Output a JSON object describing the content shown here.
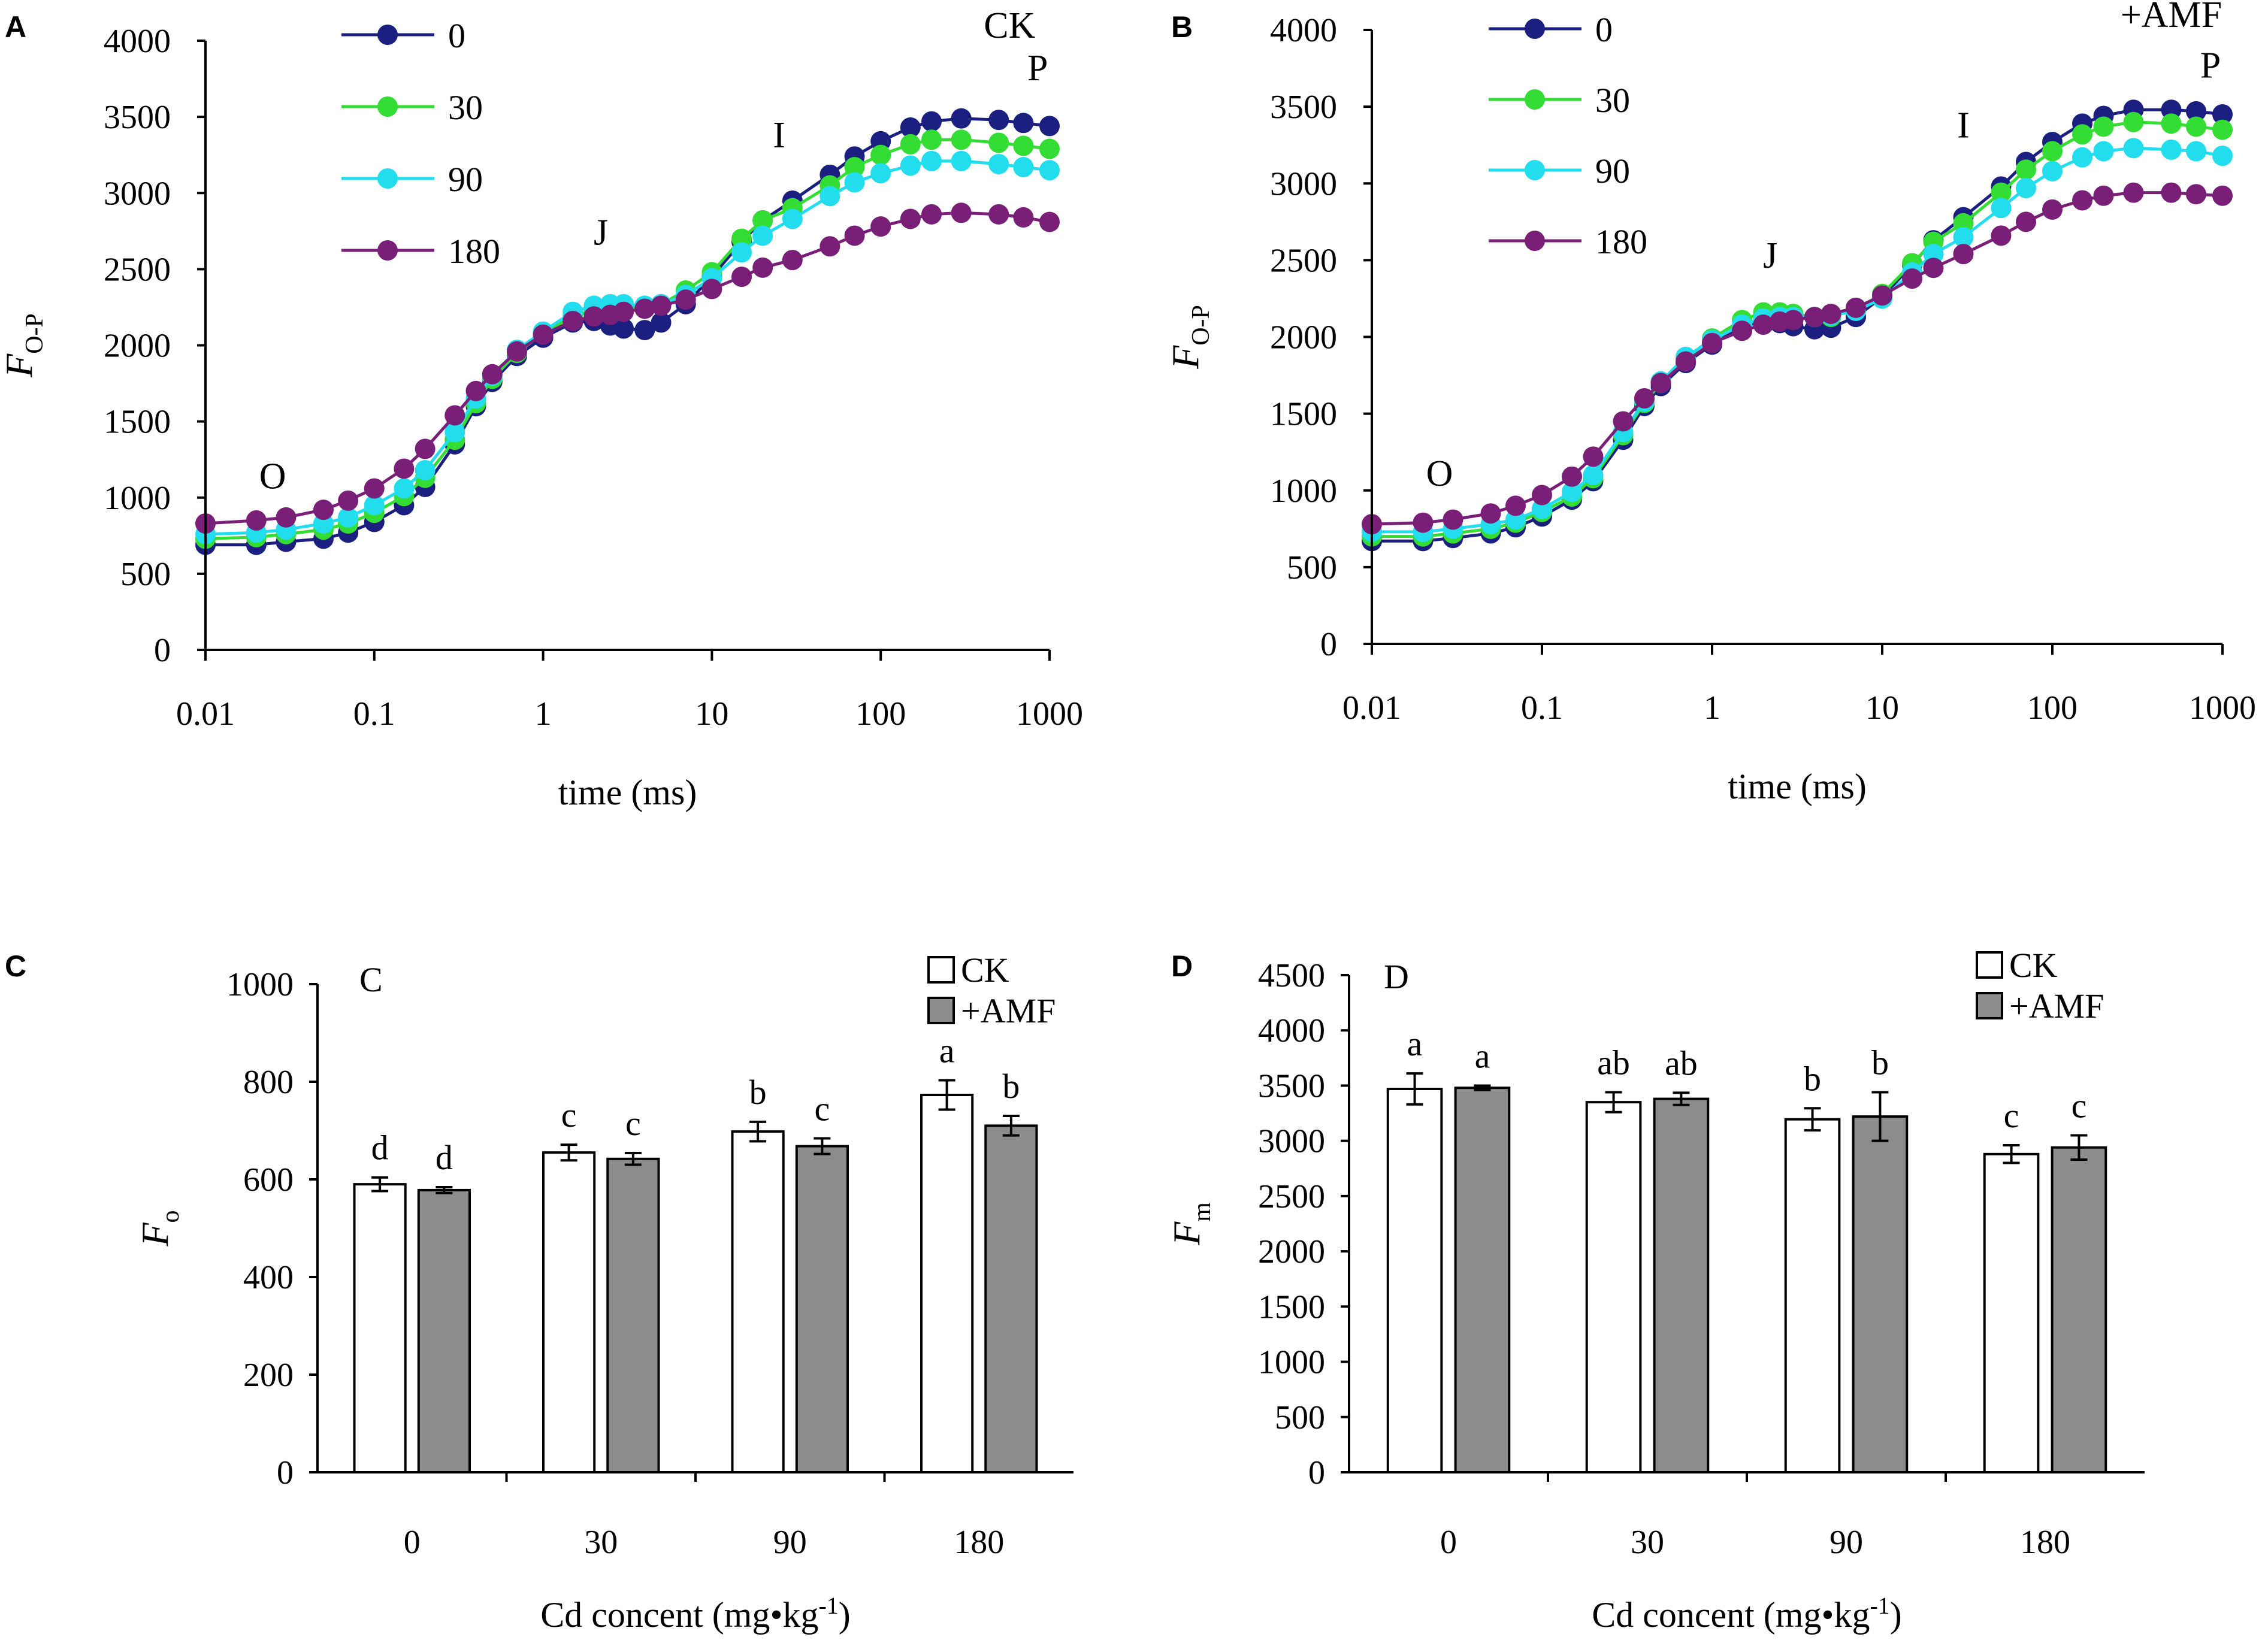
{
  "chart_data": [
    {
      "panel": "A",
      "type": "line",
      "inset_label": "CK",
      "xlabel": "time (ms)",
      "ylabel_main": "F",
      "ylabel_sub": "O-P",
      "xscale": "log",
      "xlim": [
        0.01,
        1000
      ],
      "ylim": [
        0,
        4000
      ],
      "xticks": [
        "0.01",
        "0.1",
        "1",
        "10",
        "100",
        "1000"
      ],
      "yticks": [
        "0",
        "500",
        "1000",
        "1500",
        "2000",
        "2500",
        "3000",
        "3500",
        "4000"
      ],
      "phase_labels": [
        {
          "text": "O",
          "x": 0.025,
          "y": 1060
        },
        {
          "text": "J",
          "x": 2.2,
          "y": 2660
        },
        {
          "text": "I",
          "x": 25,
          "y": 3300
        },
        {
          "text": "P",
          "x": 850,
          "y": 3740
        },
        {
          "text": "CK",
          "x": 580,
          "y": 4020
        }
      ],
      "legend": [
        "0",
        "30",
        "90",
        "180"
      ],
      "series": [
        {
          "name": "0",
          "color": "#1a1f80",
          "x": [
            0.01,
            0.02,
            0.03,
            0.05,
            0.07,
            0.1,
            0.15,
            0.2,
            0.3,
            0.4,
            0.5,
            0.7,
            1,
            1.5,
            2,
            2.5,
            3,
            4,
            5,
            7,
            10,
            15,
            20,
            30,
            50,
            70,
            100,
            150,
            200,
            300,
            500,
            700,
            1000
          ],
          "y": [
            690,
            690,
            710,
            730,
            770,
            840,
            950,
            1070,
            1350,
            1600,
            1760,
            1930,
            2050,
            2150,
            2160,
            2130,
            2110,
            2100,
            2150,
            2270,
            2450,
            2680,
            2820,
            2950,
            3120,
            3240,
            3340,
            3430,
            3470,
            3490,
            3480,
            3460,
            3440
          ]
        },
        {
          "name": "30",
          "color": "#33dd33",
          "x": [
            0.01,
            0.02,
            0.03,
            0.05,
            0.07,
            0.1,
            0.15,
            0.2,
            0.3,
            0.4,
            0.5,
            0.7,
            1,
            1.5,
            2,
            2.5,
            3,
            4,
            5,
            7,
            10,
            15,
            20,
            30,
            50,
            70,
            100,
            150,
            200,
            300,
            500,
            700,
            1000
          ],
          "y": [
            730,
            740,
            760,
            790,
            830,
            900,
            1010,
            1130,
            1380,
            1620,
            1780,
            1950,
            2080,
            2190,
            2230,
            2240,
            2250,
            2250,
            2270,
            2360,
            2480,
            2700,
            2820,
            2900,
            3050,
            3170,
            3250,
            3320,
            3350,
            3350,
            3330,
            3310,
            3290
          ]
        },
        {
          "name": "90",
          "color": "#22ddee",
          "x": [
            0.01,
            0.02,
            0.03,
            0.05,
            0.07,
            0.1,
            0.15,
            0.2,
            0.3,
            0.4,
            0.5,
            0.7,
            1,
            1.5,
            2,
            2.5,
            3,
            4,
            5,
            7,
            10,
            15,
            20,
            30,
            50,
            70,
            100,
            150,
            200,
            300,
            500,
            700,
            1000
          ],
          "y": [
            760,
            770,
            790,
            830,
            870,
            950,
            1060,
            1180,
            1430,
            1650,
            1800,
            1970,
            2090,
            2220,
            2260,
            2270,
            2270,
            2260,
            2270,
            2330,
            2440,
            2610,
            2720,
            2830,
            2980,
            3070,
            3130,
            3180,
            3210,
            3210,
            3190,
            3170,
            3150
          ]
        },
        {
          "name": "180",
          "color": "#7a1f78",
          "x": [
            0.01,
            0.02,
            0.03,
            0.05,
            0.07,
            0.1,
            0.15,
            0.2,
            0.3,
            0.4,
            0.5,
            0.7,
            1,
            1.5,
            2,
            2.5,
            3,
            4,
            5,
            7,
            10,
            15,
            20,
            30,
            50,
            70,
            100,
            150,
            200,
            300,
            500,
            700,
            1000
          ],
          "y": [
            830,
            850,
            870,
            920,
            980,
            1060,
            1190,
            1320,
            1540,
            1700,
            1810,
            1960,
            2070,
            2160,
            2190,
            2200,
            2220,
            2240,
            2260,
            2300,
            2370,
            2450,
            2510,
            2560,
            2650,
            2720,
            2780,
            2830,
            2860,
            2870,
            2860,
            2840,
            2810
          ]
        }
      ]
    },
    {
      "panel": "B",
      "type": "line",
      "inset_label": "+AMF",
      "xlabel": "time (ms)",
      "ylabel_main": "F",
      "ylabel_sub": "O-P",
      "xscale": "log",
      "xlim": [
        0.01,
        1000
      ],
      "ylim": [
        0,
        4000
      ],
      "xticks": [
        "0.01",
        "0.1",
        "1",
        "10",
        "100",
        "1000"
      ],
      "yticks": [
        "0",
        "500",
        "1000",
        "1500",
        "2000",
        "2500",
        "3000",
        "3500",
        "4000"
      ],
      "phase_labels": [
        {
          "text": "O",
          "x": 0.025,
          "y": 1030
        },
        {
          "text": "J",
          "x": 2.2,
          "y": 2450
        },
        {
          "text": "I",
          "x": 30,
          "y": 3300
        },
        {
          "text": "P",
          "x": 850,
          "y": 3690
        },
        {
          "text": "+AMF",
          "x": 500,
          "y": 4020
        }
      ],
      "legend": [
        "0",
        "30",
        "90",
        "180"
      ],
      "series": [
        {
          "name": "0",
          "color": "#1a1f80",
          "x": [
            0.01,
            0.02,
            0.03,
            0.05,
            0.07,
            0.1,
            0.15,
            0.2,
            0.3,
            0.4,
            0.5,
            0.7,
            1,
            1.5,
            2,
            2.5,
            3,
            4,
            5,
            7,
            10,
            15,
            20,
            30,
            50,
            70,
            100,
            150,
            200,
            300,
            500,
            700,
            1000
          ],
          "y": [
            670,
            670,
            690,
            720,
            760,
            830,
            940,
            1060,
            1330,
            1550,
            1680,
            1830,
            1950,
            2070,
            2100,
            2090,
            2070,
            2050,
            2060,
            2130,
            2260,
            2470,
            2630,
            2780,
            2980,
            3140,
            3270,
            3390,
            3440,
            3480,
            3480,
            3470,
            3450
          ]
        },
        {
          "name": "30",
          "color": "#33dd33",
          "x": [
            0.01,
            0.02,
            0.03,
            0.05,
            0.07,
            0.1,
            0.15,
            0.2,
            0.3,
            0.4,
            0.5,
            0.7,
            1,
            1.5,
            2,
            2.5,
            3,
            4,
            5,
            7,
            10,
            15,
            20,
            30,
            50,
            70,
            100,
            150,
            200,
            300,
            500,
            700,
            1000
          ],
          "y": [
            700,
            700,
            720,
            750,
            790,
            860,
            960,
            1080,
            1360,
            1570,
            1700,
            1860,
            1990,
            2110,
            2160,
            2160,
            2150,
            2130,
            2130,
            2180,
            2280,
            2480,
            2620,
            2740,
            2940,
            3090,
            3210,
            3320,
            3370,
            3400,
            3390,
            3370,
            3350
          ]
        },
        {
          "name": "90",
          "color": "#22ddee",
          "x": [
            0.01,
            0.02,
            0.03,
            0.05,
            0.07,
            0.1,
            0.15,
            0.2,
            0.3,
            0.4,
            0.5,
            0.7,
            1,
            1.5,
            2,
            2.5,
            3,
            4,
            5,
            7,
            10,
            15,
            20,
            30,
            50,
            70,
            100,
            150,
            200,
            300,
            500,
            700,
            1000
          ],
          "y": [
            730,
            730,
            750,
            780,
            810,
            880,
            990,
            1100,
            1380,
            1580,
            1710,
            1870,
            1980,
            2080,
            2120,
            2130,
            2130,
            2130,
            2140,
            2170,
            2250,
            2420,
            2540,
            2650,
            2840,
            2970,
            3080,
            3170,
            3210,
            3230,
            3220,
            3210,
            3180
          ]
        },
        {
          "name": "180",
          "color": "#7a1f78",
          "x": [
            0.01,
            0.02,
            0.03,
            0.05,
            0.07,
            0.1,
            0.15,
            0.2,
            0.3,
            0.4,
            0.5,
            0.7,
            1,
            1.5,
            2,
            2.5,
            3,
            4,
            5,
            7,
            10,
            15,
            20,
            30,
            50,
            70,
            100,
            150,
            200,
            300,
            500,
            700,
            1000
          ],
          "y": [
            780,
            790,
            810,
            850,
            900,
            970,
            1090,
            1220,
            1450,
            1600,
            1700,
            1840,
            1960,
            2040,
            2080,
            2100,
            2110,
            2130,
            2150,
            2190,
            2270,
            2380,
            2450,
            2540,
            2660,
            2750,
            2830,
            2890,
            2920,
            2940,
            2940,
            2930,
            2920
          ]
        }
      ]
    },
    {
      "panel": "C",
      "type": "bar",
      "inset_label": "C",
      "xlabel_main": "Cd concent (mg•kg",
      "xlabel_sup": "-1",
      "xlabel_end": ")",
      "ylabel_main": "F",
      "ylabel_sub": "o",
      "ylim": [
        0,
        1000
      ],
      "yticks": [
        "0",
        "200",
        "400",
        "600",
        "800",
        "1000"
      ],
      "categories": [
        "0",
        "30",
        "90",
        "180"
      ],
      "series": [
        {
          "name": "CK",
          "fill": "#ffffff",
          "values": [
            590,
            655,
            698,
            773
          ],
          "errors": [
            14,
            16,
            20,
            30
          ],
          "letters": [
            "d",
            "c",
            "b",
            "a"
          ]
        },
        {
          "name": "+AMF",
          "fill": "#8c8c8c",
          "values": [
            578,
            642,
            668,
            710
          ],
          "errors": [
            6,
            12,
            16,
            20
          ],
          "letters": [
            "d",
            "c",
            "c",
            "b"
          ]
        }
      ]
    },
    {
      "panel": "D",
      "type": "bar",
      "inset_label": "D",
      "xlabel_main": "Cd concent (mg•kg",
      "xlabel_sup": "-1",
      "xlabel_end": ")",
      "ylabel_main": "F",
      "ylabel_sub": "m",
      "ylim": [
        0,
        4500
      ],
      "yticks": [
        "0",
        "500",
        "1000",
        "1500",
        "2000",
        "2500",
        "3000",
        "3500",
        "4000",
        "4500"
      ],
      "categories": [
        "0",
        "30",
        "90",
        "180"
      ],
      "series": [
        {
          "name": "CK",
          "fill": "#ffffff",
          "values": [
            3470,
            3350,
            3195,
            2880
          ],
          "errors": [
            140,
            90,
            100,
            80
          ],
          "letters": [
            "a",
            "ab",
            "b",
            "c"
          ]
        },
        {
          "name": "+AMF",
          "fill": "#8c8c8c",
          "values": [
            3480,
            3380,
            3220,
            2940
          ],
          "errors": [
            20,
            55,
            220,
            110
          ],
          "letters": [
            "a",
            "ab",
            "b",
            "c"
          ]
        }
      ]
    }
  ]
}
